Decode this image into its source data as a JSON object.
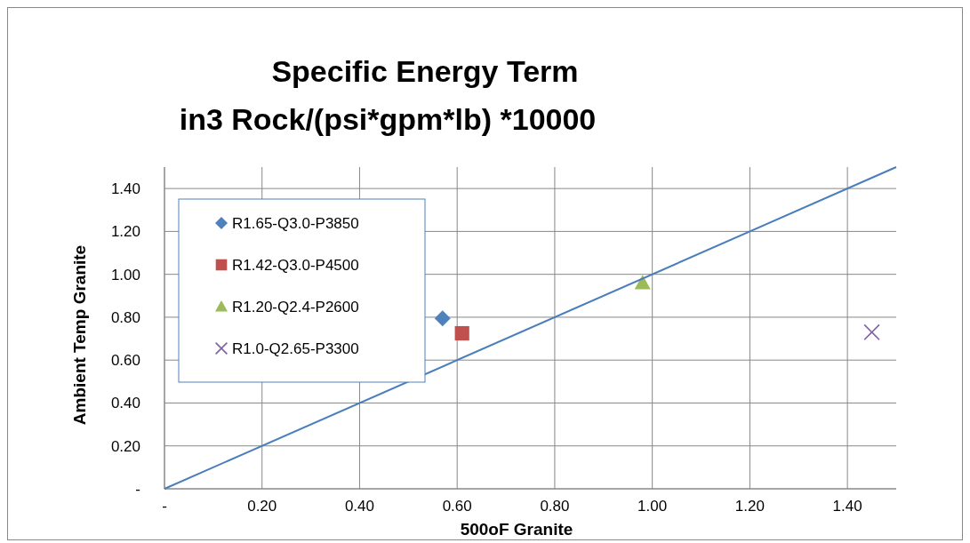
{
  "chart_data": {
    "type": "scatter",
    "title": "Specific Energy Term",
    "subtitle": "in3 Rock/(psi*gpm*lb) *10000",
    "xlabel": "500oF Granite",
    "ylabel": "Ambient Temp Granite",
    "xlim": [
      0,
      1.5
    ],
    "ylim": [
      0,
      1.5
    ],
    "xticks": [
      {
        "value": 0,
        "label": "-"
      },
      {
        "value": 0.2,
        "label": "0.20"
      },
      {
        "value": 0.4,
        "label": "0.40"
      },
      {
        "value": 0.6,
        "label": "0.60"
      },
      {
        "value": 0.8,
        "label": "0.80"
      },
      {
        "value": 1,
        "label": "1.00"
      },
      {
        "value": 1.2,
        "label": "1.20"
      },
      {
        "value": 1.4,
        "label": "1.40"
      }
    ],
    "yticks": [
      {
        "value": 0,
        "label": "-"
      },
      {
        "value": 0.2,
        "label": "0.20"
      },
      {
        "value": 0.4,
        "label": "0.40"
      },
      {
        "value": 0.6,
        "label": "0.60"
      },
      {
        "value": 0.8,
        "label": "0.80"
      },
      {
        "value": 1,
        "label": "1.00"
      },
      {
        "value": 1.2,
        "label": "1.20"
      },
      {
        "value": 1.4,
        "label": "1.40"
      }
    ],
    "grid": true,
    "legend": "top left",
    "series": [
      {
        "name": "R1.65-Q3.0-P3850",
        "color": "#4f81bd",
        "marker": "diamond",
        "x": [
          0.57
        ],
        "values": [
          0.795
        ]
      },
      {
        "name": "R1.42-Q3.0-P4500",
        "color": "#c0504d",
        "marker": "square",
        "x": [
          0.61
        ],
        "values": [
          0.725
        ]
      },
      {
        "name": "R1.20-Q2.4-P2600",
        "color": "#9bbb59",
        "marker": "triangle",
        "x": [
          0.98
        ],
        "values": [
          0.96
        ]
      },
      {
        "name": "R1.0-Q2.65-P3300",
        "color": "#8064a2",
        "marker": "cross",
        "x": [
          1.45
        ],
        "values": [
          0.73
        ]
      },
      {
        "type": "line",
        "color": "#4a7ebb",
        "marker": "none",
        "x": [
          0,
          1.5
        ],
        "values": [
          0,
          1.5
        ]
      }
    ]
  }
}
